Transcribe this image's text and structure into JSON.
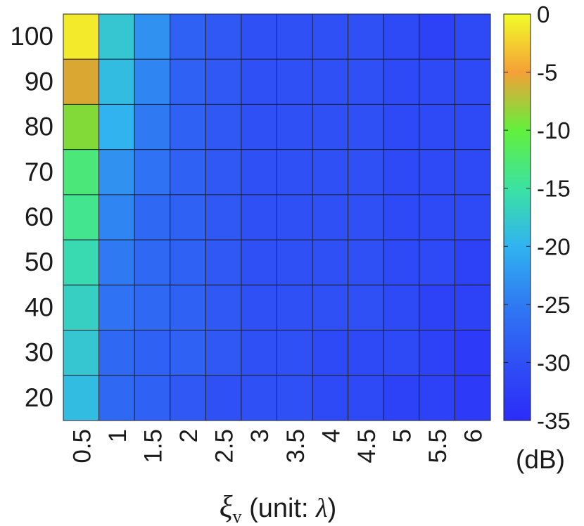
{
  "chart_data": {
    "type": "heatmap",
    "x_tick_labels": [
      "0.5",
      "1",
      "1.5",
      "2",
      "2.5",
      "3",
      "3.5",
      "4",
      "4.5",
      "5",
      "5.5",
      "6"
    ],
    "y_tick_labels": [
      "100",
      "90",
      "80",
      "70",
      "60",
      "50",
      "40",
      "30",
      "20"
    ],
    "y_values": [
      100,
      90,
      80,
      70,
      60,
      50,
      40,
      30,
      20
    ],
    "x_values": [
      0.5,
      1,
      1.5,
      2,
      2.5,
      3,
      3.5,
      4,
      4.5,
      5,
      5.5,
      6
    ],
    "values": [
      [
        -1,
        -18,
        -23,
        -28,
        -29,
        -30,
        -30,
        -30,
        -30,
        -31,
        -32,
        -31
      ],
      [
        -6,
        -19,
        -24,
        -28,
        -29,
        -30,
        -30,
        -30,
        -30,
        -31,
        -31,
        -31
      ],
      [
        -9,
        -20,
        -25,
        -28,
        -29,
        -30,
        -30,
        -30,
        -30,
        -31,
        -31,
        -31
      ],
      [
        -13,
        -23,
        -26,
        -28,
        -29,
        -30,
        -30,
        -30,
        -30,
        -31,
        -31,
        -31
      ],
      [
        -14,
        -24,
        -27,
        -28,
        -29,
        -30,
        -30,
        -30,
        -30,
        -31,
        -31,
        -31
      ],
      [
        -16,
        -25,
        -27,
        -28,
        -29,
        -30,
        -30,
        -30,
        -30,
        -31,
        -31,
        -32
      ],
      [
        -17,
        -26,
        -27,
        -28,
        -29,
        -30,
        -30,
        -30,
        -30,
        -31,
        -32,
        -32
      ],
      [
        -18,
        -27,
        -28,
        -28,
        -29,
        -30,
        -30,
        -31,
        -31,
        -31,
        -32,
        -33
      ],
      [
        -19,
        -27,
        -28,
        -29,
        -30,
        -30,
        -30,
        -31,
        -31,
        -32,
        -32,
        -33
      ]
    ],
    "colorbar": {
      "min": -35,
      "max": 0,
      "tick_labels": [
        "0",
        "-5",
        "-10",
        "-15",
        "-20",
        "-25",
        "-30",
        "-35"
      ],
      "tick_values": [
        0,
        -5,
        -10,
        -15,
        -20,
        -25,
        -30,
        -35
      ],
      "unit_label": "(dB)",
      "colormap": "parula"
    },
    "xlabel": {
      "symbol": "ξ",
      "subscript": "v",
      "text": " (unit: ",
      "unit_symbol": "λ",
      "close": ")"
    },
    "ylabel": ""
  }
}
